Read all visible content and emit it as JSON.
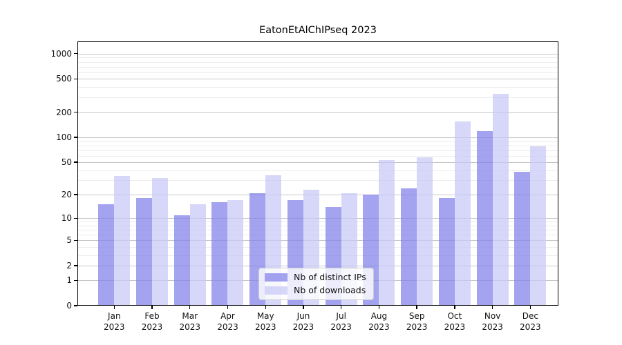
{
  "title": "EatonEtAlChIPseq 2023",
  "legend": {
    "items": [
      {
        "label": "Nb of distinct IPs"
      },
      {
        "label": "Nb of downloads"
      }
    ]
  },
  "colors": {
    "bar_distinct_ips": "rgba(128,128,234,0.72)",
    "bar_downloads": "rgba(200,200,246,0.72)",
    "bar_distinct_ips_flat": "#a8a8f0",
    "bar_downloads_flat": "#d9d9f8",
    "grid_major": "#c6c6c6",
    "grid_minor": "#ececec",
    "spine": "#000000",
    "text": "#111111",
    "legend_border": "#cccccc"
  },
  "chart_data": {
    "type": "bar",
    "title": "EatonEtAlChIPseq 2023",
    "categories": [
      "Jan 2023",
      "Feb 2023",
      "Mar 2023",
      "Apr 2023",
      "May 2023",
      "Jun 2023",
      "Jul 2023",
      "Aug 2023",
      "Sep 2023",
      "Oct 2023",
      "Nov 2023",
      "Dec 2023"
    ],
    "series": [
      {
        "name": "Nb of distinct IPs",
        "values": [
          15,
          18,
          11,
          16,
          21,
          17,
          14,
          20,
          24,
          18,
          118,
          38
        ]
      },
      {
        "name": "Nb of downloads",
        "values": [
          34,
          32,
          15,
          17,
          35,
          23,
          21,
          53,
          57,
          155,
          330,
          78
        ]
      }
    ],
    "xlabel": "",
    "ylabel": "",
    "yscale": "log1p",
    "ylim": [
      0,
      1400
    ],
    "y_ticks": [
      0,
      1,
      2,
      5,
      10,
      20,
      50,
      100,
      200,
      500,
      1000
    ],
    "y_minor_gridlines": [
      3,
      4,
      6,
      7,
      8,
      9,
      30,
      40,
      60,
      70,
      80,
      90,
      300,
      400,
      600,
      700,
      800,
      900
    ],
    "grid": true,
    "legend_position": "lower center"
  }
}
